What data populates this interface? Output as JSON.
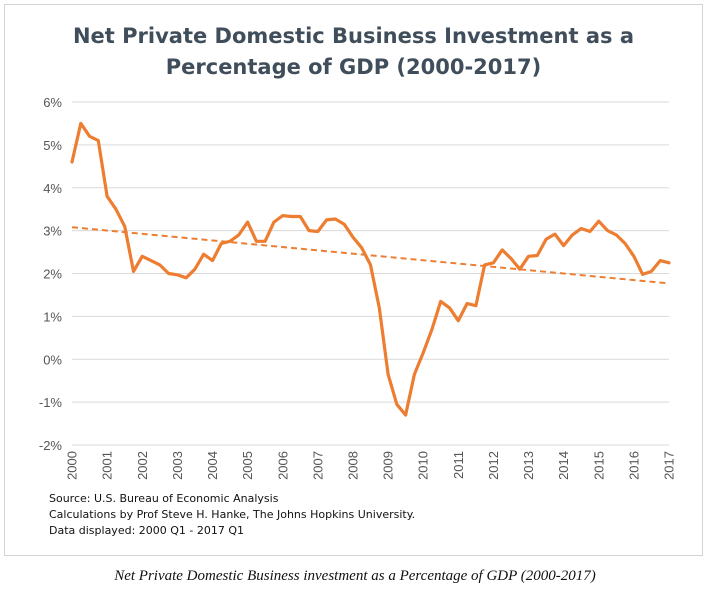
{
  "chart_data": {
    "type": "line",
    "title": "Net Private Domestic Business Investment as a Percentage of GDP (2000-2017)",
    "title_lines": [
      "Net Private Domestic Business Investment as a",
      "Percentage of GDP (2000-2017)"
    ],
    "xlabel": "",
    "ylabel": "",
    "x_ticks": [
      "2000",
      "2001",
      "2002",
      "2003",
      "2004",
      "2005",
      "2006",
      "2007",
      "2008",
      "2009",
      "2010",
      "2011",
      "2012",
      "2013",
      "2014",
      "2015",
      "2016",
      "2017"
    ],
    "x_range": [
      2000.0,
      2017.0
    ],
    "y_ticks": [
      "6%",
      "5%",
      "4%",
      "3%",
      "2%",
      "1%",
      "0%",
      "-1%",
      "-2%"
    ],
    "ylim": [
      -2,
      6
    ],
    "grid": true,
    "colors": {
      "series": "#ed7d31",
      "grid": "#d9d9d9",
      "title": "#404d5b"
    },
    "series": [
      {
        "name": "Net Private Domestic Business Investment (% of GDP)",
        "style": "solid",
        "x": [
          2000.0,
          2000.25,
          2000.5,
          2000.75,
          2001.0,
          2001.25,
          2001.5,
          2001.75,
          2002.0,
          2002.25,
          2002.5,
          2002.75,
          2003.0,
          2003.25,
          2003.5,
          2003.75,
          2004.0,
          2004.25,
          2004.5,
          2004.75,
          2005.0,
          2005.25,
          2005.5,
          2005.75,
          2006.0,
          2006.25,
          2006.5,
          2006.75,
          2007.0,
          2007.25,
          2007.5,
          2007.75,
          2008.0,
          2008.25,
          2008.5,
          2008.75,
          2009.0,
          2009.25,
          2009.5,
          2009.75,
          2010.0,
          2010.25,
          2010.5,
          2010.75,
          2011.0,
          2011.25,
          2011.5,
          2011.75,
          2012.0,
          2012.25,
          2012.5,
          2012.75,
          2013.0,
          2013.25,
          2013.5,
          2013.75,
          2014.0,
          2014.25,
          2014.5,
          2014.75,
          2015.0,
          2015.25,
          2015.5,
          2015.75,
          2016.0,
          2016.25,
          2016.5,
          2016.75,
          2017.0
        ],
        "values": [
          4.6,
          5.5,
          5.2,
          5.1,
          3.8,
          3.5,
          3.1,
          2.05,
          2.4,
          2.3,
          2.2,
          2.0,
          1.97,
          1.9,
          2.1,
          2.45,
          2.3,
          2.7,
          2.75,
          2.9,
          3.2,
          2.75,
          2.75,
          3.2,
          3.35,
          3.33,
          3.33,
          3.0,
          2.98,
          3.25,
          3.27,
          3.15,
          2.85,
          2.6,
          2.2,
          1.2,
          -0.35,
          -1.05,
          -1.3,
          -0.35,
          0.15,
          0.7,
          1.35,
          1.2,
          0.9,
          1.3,
          1.25,
          2.2,
          2.25,
          2.55,
          2.35,
          2.1,
          2.4,
          2.42,
          2.8,
          2.92,
          2.65,
          2.9,
          3.05,
          2.98,
          3.22,
          3.0,
          2.9,
          2.7,
          2.4,
          1.98,
          2.05,
          2.3,
          2.25
        ]
      },
      {
        "name": "Linear trend",
        "style": "dashed",
        "x": [
          2000.0,
          2017.0
        ],
        "values": [
          3.08,
          1.77
        ]
      }
    ]
  },
  "notes": [
    "Source: U.S. Bureau of Economic Analysis",
    "Calculations by Prof Steve H. Hanke, The Johns Hopkins University.",
    "Data displayed: 2000 Q1 - 2017 Q1"
  ],
  "caption": "Net Private Domestic Business investment as a Percentage of GDP (2000-2017)"
}
